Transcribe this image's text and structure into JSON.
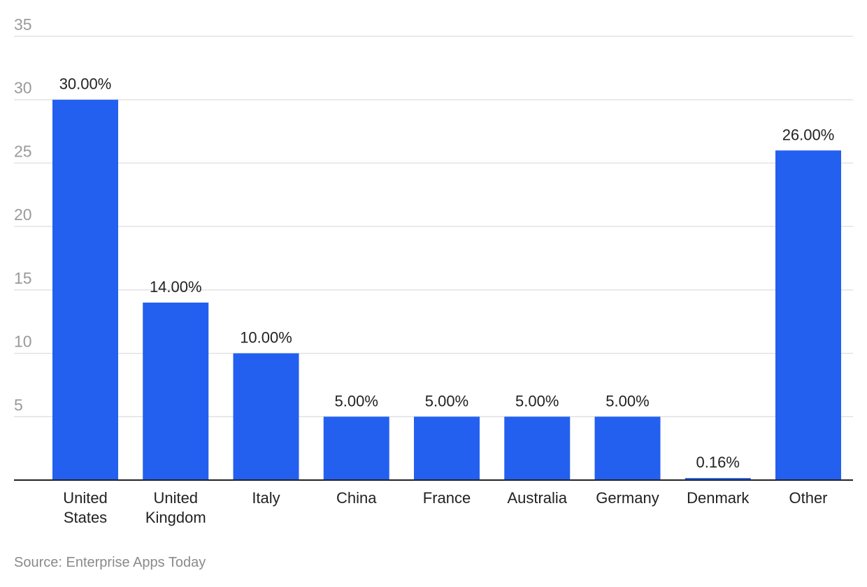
{
  "chart_data": {
    "type": "bar",
    "categories": [
      [
        "United",
        "States"
      ],
      [
        "United",
        "Kingdom"
      ],
      [
        "Italy"
      ],
      [
        "China"
      ],
      [
        "France"
      ],
      [
        "Australia"
      ],
      [
        "Germany"
      ],
      [
        "Denmark"
      ],
      [
        "Other"
      ]
    ],
    "values": [
      30,
      14,
      10,
      5,
      5,
      5,
      5,
      0.16,
      26
    ],
    "value_labels": [
      "30.00%",
      "14.00%",
      "10.00%",
      "5.00%",
      "5.00%",
      "5.00%",
      "5.00%",
      "0.16%",
      "26.00%"
    ],
    "yticks": [
      5,
      10,
      15,
      20,
      25,
      30,
      35
    ],
    "ylim": [
      0,
      35
    ],
    "grid": true,
    "legend": "none",
    "bar_color": "#2360f0"
  },
  "source": "Source: Enterprise Apps Today"
}
